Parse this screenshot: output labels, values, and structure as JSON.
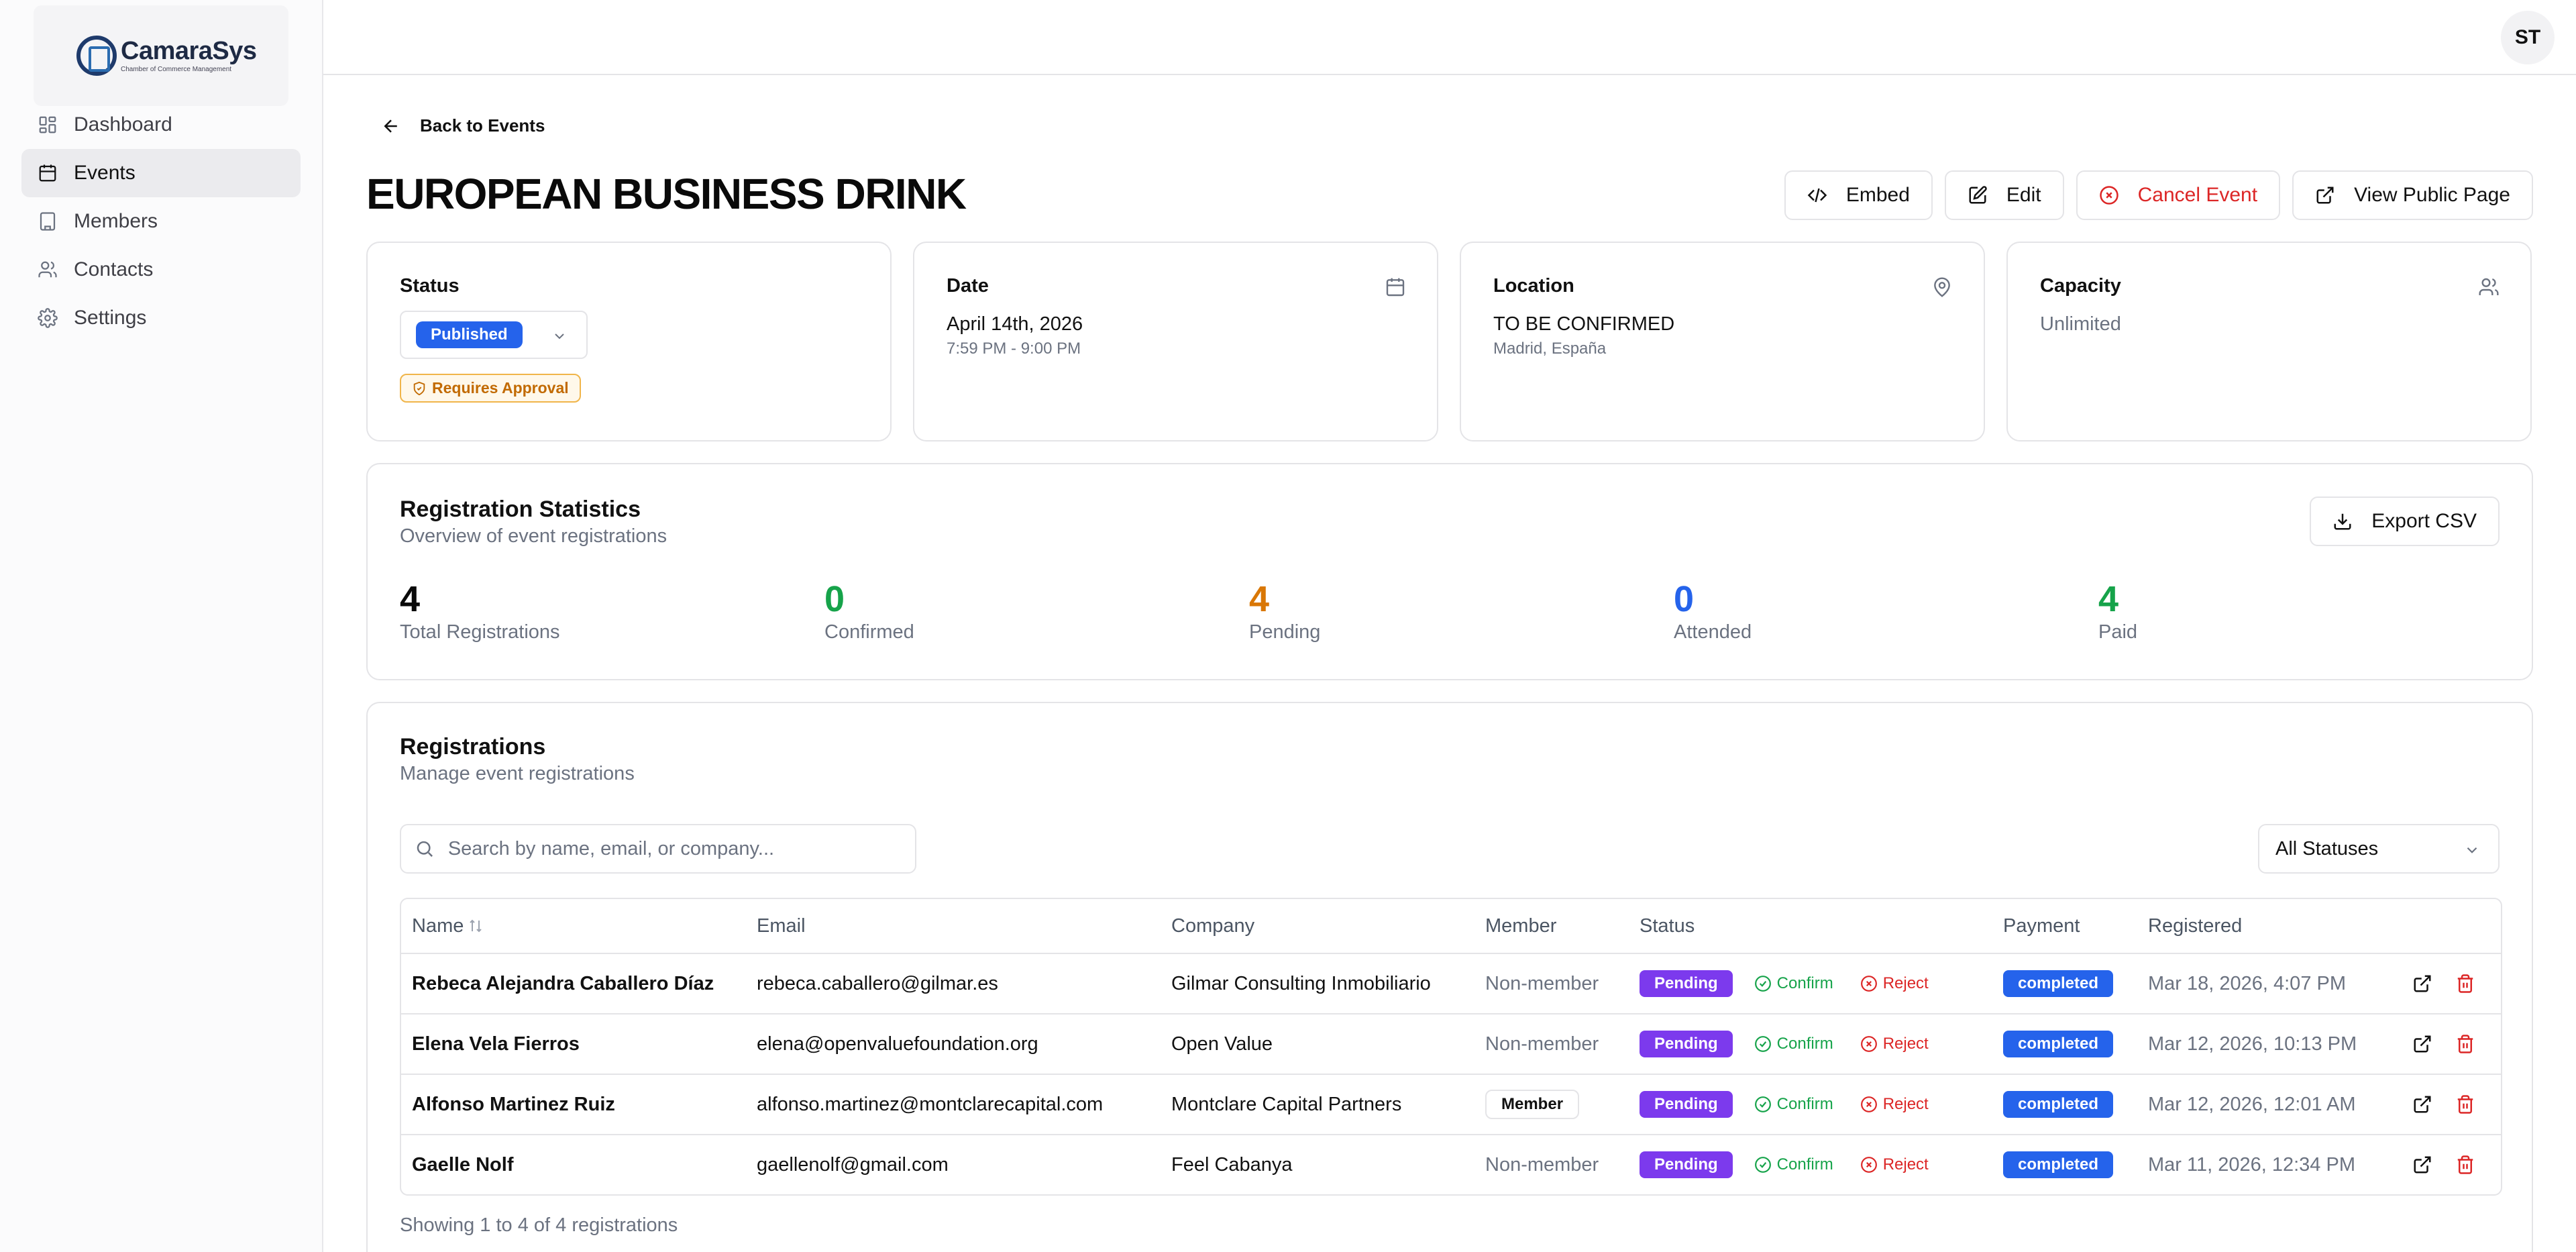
{
  "app": {
    "name": "CamaraSys",
    "tagline": "Chamber of Commerce Management",
    "user_initials": "ST"
  },
  "sidebar": {
    "items": [
      {
        "label": "Dashboard",
        "icon": "grid-icon",
        "active": false
      },
      {
        "label": "Events",
        "icon": "calendar-icon",
        "active": true
      },
      {
        "label": "Members",
        "icon": "building-icon",
        "active": false
      },
      {
        "label": "Contacts",
        "icon": "users-icon",
        "active": false
      },
      {
        "label": "Settings",
        "icon": "gear-icon",
        "active": false
      }
    ]
  },
  "page": {
    "back_label": "Back to Events",
    "title": "EUROPEAN BUSINESS DRINK",
    "actions": {
      "embed": "Embed",
      "edit": "Edit",
      "cancel": "Cancel Event",
      "public": "View Public Page"
    }
  },
  "cards": {
    "status": {
      "label": "Status",
      "value": "Published",
      "approval": "Requires Approval"
    },
    "date": {
      "label": "Date",
      "value": "April 14th, 2026",
      "time": "7:59 PM - 9:00 PM"
    },
    "location": {
      "label": "Location",
      "value": "TO BE CONFIRMED",
      "sub": "Madrid, España"
    },
    "capacity": {
      "label": "Capacity",
      "value": "Unlimited"
    }
  },
  "stats": {
    "title": "Registration Statistics",
    "subtitle": "Overview of event registrations",
    "export_label": "Export CSV",
    "items": [
      {
        "value": "4",
        "label": "Total Registrations",
        "color": "#0a0a0a"
      },
      {
        "value": "0",
        "label": "Confirmed",
        "color": "#16a34a"
      },
      {
        "value": "4",
        "label": "Pending",
        "color": "#d97706"
      },
      {
        "value": "0",
        "label": "Attended",
        "color": "#2563eb"
      },
      {
        "value": "4",
        "label": "Paid",
        "color": "#16a34a"
      }
    ]
  },
  "registrations": {
    "title": "Registrations",
    "subtitle": "Manage event registrations",
    "search_placeholder": "Search by name, email, or company...",
    "filter_value": "All Statuses",
    "columns": {
      "name": "Name",
      "email": "Email",
      "company": "Company",
      "member": "Member",
      "status": "Status",
      "payment": "Payment",
      "registered": "Registered"
    },
    "confirm_label": "Confirm",
    "reject_label": "Reject",
    "rows": [
      {
        "name": "Rebeca Alejandra Caballero Díaz",
        "email": "rebeca.caballero@gilmar.es",
        "company": "Gilmar Consulting Inmobiliario",
        "member": "Non-member",
        "is_member": false,
        "status": "Pending",
        "payment": "completed",
        "registered": "Mar 18, 2026, 4:07 PM"
      },
      {
        "name": "Elena Vela Fierros",
        "email": "elena@openvaluefoundation.org",
        "company": "Open Value",
        "member": "Non-member",
        "is_member": false,
        "status": "Pending",
        "payment": "completed",
        "registered": "Mar 12, 2026, 10:13 PM"
      },
      {
        "name": "Alfonso Martinez Ruiz",
        "email": "alfonso.martinez@montclarecapital.com",
        "company": "Montclare Capital Partners",
        "member": "Member",
        "is_member": true,
        "status": "Pending",
        "payment": "completed",
        "registered": "Mar 12, 2026, 12:01 AM"
      },
      {
        "name": "Gaelle Nolf",
        "email": "gaellenolf@gmail.com",
        "company": "Feel Cabanya",
        "member": "Non-member",
        "is_member": false,
        "status": "Pending",
        "payment": "completed",
        "registered": "Mar 11, 2026, 12:34 PM"
      }
    ],
    "showing_text": "Showing 1 to 4 of 4 registrations"
  }
}
